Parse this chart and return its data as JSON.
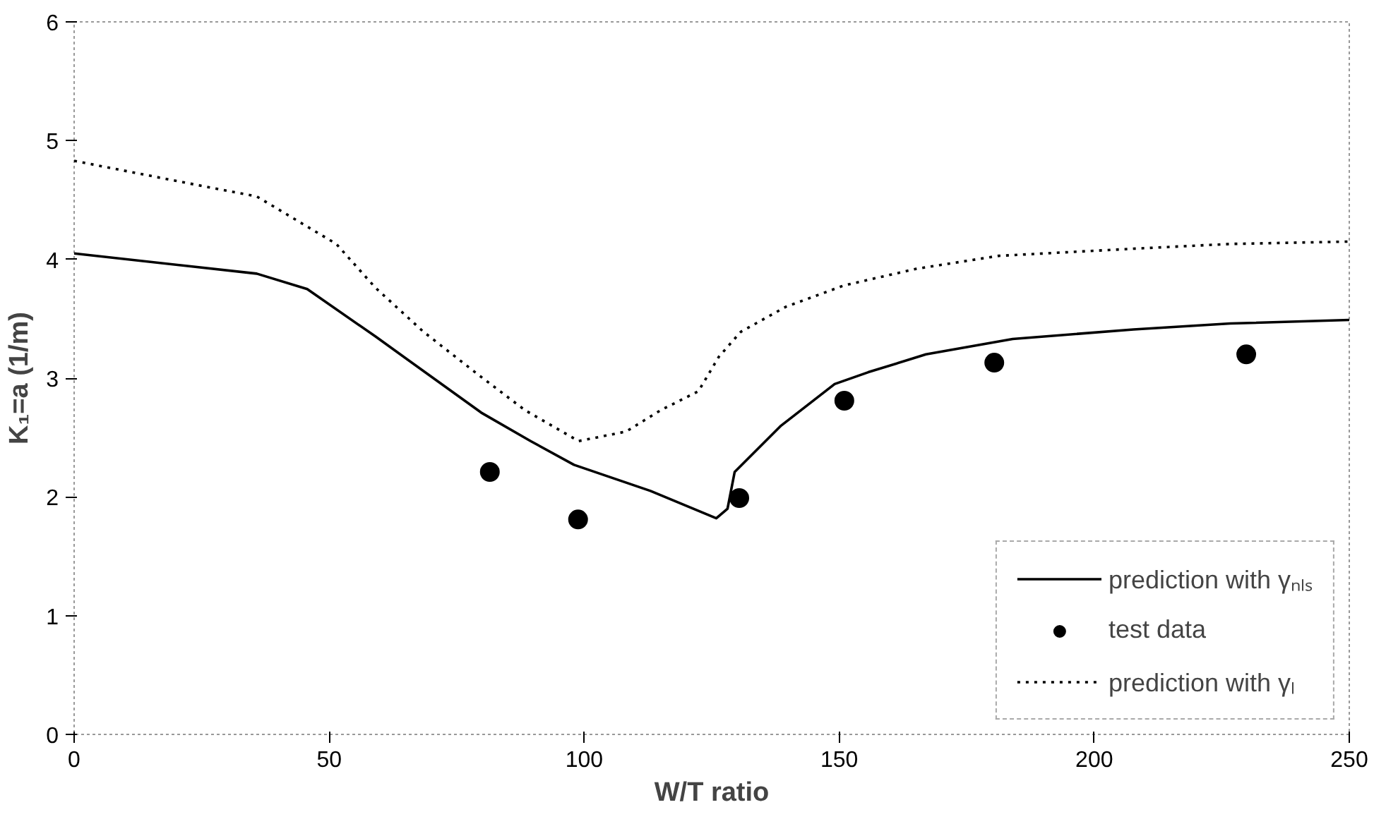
{
  "chart_data": {
    "type": "line",
    "xlabel": "W/T ratio",
    "ylabel": "K₁=a (1/m)",
    "xlim": [
      0,
      250
    ],
    "ylim": [
      0,
      6
    ],
    "xticks": [
      0,
      50,
      100,
      150,
      200,
      250
    ],
    "yticks": [
      0,
      1,
      2,
      3,
      4,
      5,
      6
    ],
    "grid": false,
    "legend": "bottom right",
    "series": [
      {
        "name": "prediction with γₙₗₛ",
        "color": "#000000",
        "line_style": "solid",
        "x": [
          0,
          35.8,
          45.7,
          59.1,
          79.8,
          89.5,
          98,
          113,
          125.9,
          128.1,
          129.5,
          138.6,
          149.1,
          155.7,
          167,
          184,
          207.7,
          226.7,
          250
        ],
        "values": [
          4.05,
          3.88,
          3.75,
          3.35,
          2.71,
          2.47,
          2.27,
          2.05,
          1.82,
          1.9,
          2.21,
          2.6,
          2.95,
          3.05,
          3.2,
          3.33,
          3.41,
          3.46,
          3.49
        ]
      },
      {
        "name": "test data",
        "color": "#000000",
        "type": "scatter",
        "marker": "circle",
        "x": [
          81.5,
          98.8,
          130.4,
          151,
          180.4,
          229.8
        ],
        "values": [
          2.21,
          1.81,
          1.99,
          2.81,
          3.13,
          3.2
        ]
      },
      {
        "name": "prediction with γₗ",
        "color": "#000000",
        "line_style": "dotted",
        "x": [
          0,
          21.3,
          35.8,
          51.4,
          59.1,
          68.5,
          79.5,
          88.4,
          98.9,
          108.2,
          115,
          122.4,
          126.4,
          130.7,
          139.5,
          150.9,
          165,
          181.3,
          207.7,
          226.7,
          250
        ],
        "values": [
          4.83,
          4.65,
          4.53,
          4.13,
          3.76,
          3.39,
          3.02,
          2.73,
          2.47,
          2.55,
          2.73,
          2.89,
          3.18,
          3.39,
          3.6,
          3.78,
          3.92,
          4.03,
          4.09,
          4.13,
          4.15
        ]
      }
    ]
  }
}
